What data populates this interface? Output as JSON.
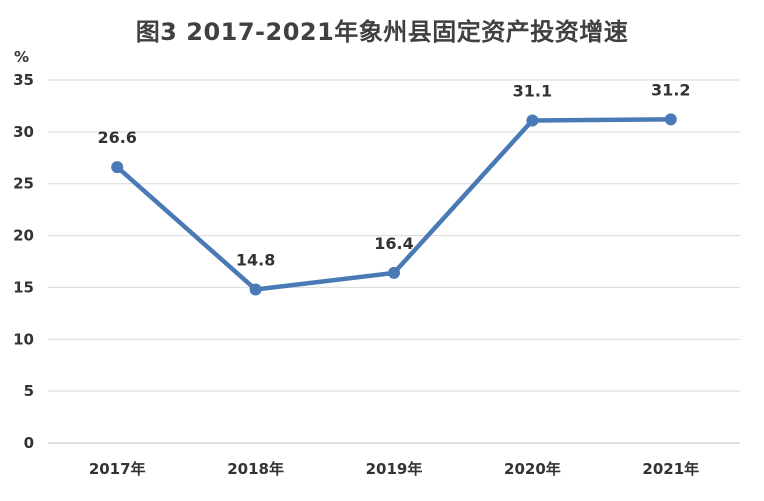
{
  "chart_data": {
    "type": "line",
    "title": "图3  2017-2021年象州县固定资产投资增速",
    "ylabel": "%",
    "xlabel": "",
    "categories": [
      "2017年",
      "2018年",
      "2019年",
      "2020年",
      "2021年"
    ],
    "series": [
      {
        "values": [
          26.6,
          14.8,
          16.4,
          31.1,
          31.2
        ],
        "color": "#4a7ab5"
      }
    ],
    "data_labels": [
      "26.6",
      "14.8",
      "16.4",
      "31.1",
      "31.2"
    ],
    "ylim": [
      0,
      35
    ],
    "yticks": [
      0,
      5,
      10,
      15,
      20,
      25,
      30,
      35
    ],
    "grid": true,
    "legend": "none",
    "colors": {
      "line": "#4a7ab5",
      "grid": "#d9d9d9",
      "text": "#333333"
    }
  }
}
